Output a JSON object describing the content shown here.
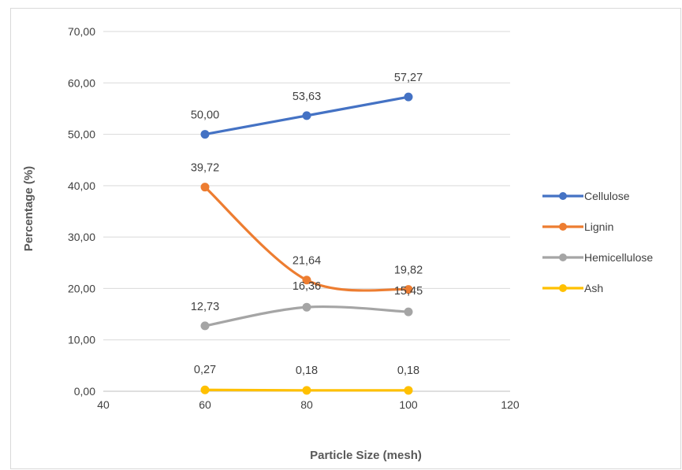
{
  "chart_data": {
    "type": "scatter",
    "title": "",
    "xlabel": "Particle Size (mesh)",
    "ylabel": "Percentage (%)",
    "xlim": [
      40,
      120
    ],
    "ylim": [
      0,
      70
    ],
    "x_ticks": [
      "40",
      "60",
      "80",
      "100",
      "120"
    ],
    "y_ticks": [
      "0,00",
      "10,00",
      "20,00",
      "30,00",
      "40,00",
      "50,00",
      "60,00",
      "70,00"
    ],
    "grid": "horizontal major gridlines",
    "legend_position": "right",
    "series": [
      {
        "name": "Cellulose",
        "color": "#4472C4",
        "smooth": false,
        "x": [
          60,
          80,
          100
        ],
        "y": [
          50.0,
          53.63,
          57.27
        ],
        "labels": [
          "50,00",
          "53,63",
          "57,27"
        ]
      },
      {
        "name": "Lignin",
        "color": "#ED7D31",
        "smooth": true,
        "x": [
          60,
          80,
          100
        ],
        "y": [
          39.72,
          21.64,
          19.82
        ],
        "labels": [
          "39,72",
          "21,64",
          "19,82"
        ]
      },
      {
        "name": "Hemicellulose",
        "color": "#A5A5A5",
        "smooth": true,
        "x": [
          60,
          80,
          100
        ],
        "y": [
          12.73,
          16.36,
          15.45
        ],
        "labels": [
          "12,73",
          "16,36",
          "15,45"
        ]
      },
      {
        "name": "Ash",
        "color": "#FFC000",
        "smooth": false,
        "x": [
          60,
          80,
          100
        ],
        "y": [
          0.27,
          0.18,
          0.18
        ],
        "labels": [
          "0,27",
          "0,18",
          "0,18"
        ]
      }
    ]
  }
}
